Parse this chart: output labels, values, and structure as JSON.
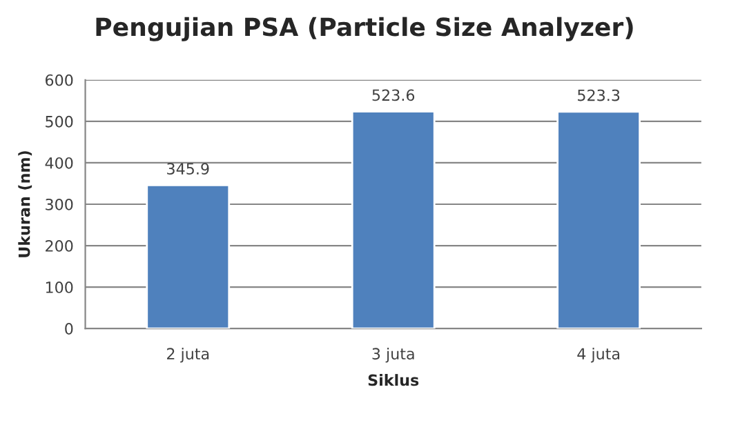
{
  "chart_data": {
    "type": "bar",
    "title": "Pengujian PSA (Particle Size Analyzer)",
    "xlabel": "Siklus",
    "ylabel": "Ukuran (nm)",
    "categories": [
      "2 juta",
      "3 juta",
      "4 juta"
    ],
    "values": [
      345.9,
      523.6,
      523.3
    ],
    "color": "#4f81bd",
    "ylim": [
      0,
      600
    ],
    "yticks": [
      0,
      100,
      200,
      300,
      400,
      500,
      600
    ],
    "grid": "y",
    "data_labels": true
  }
}
